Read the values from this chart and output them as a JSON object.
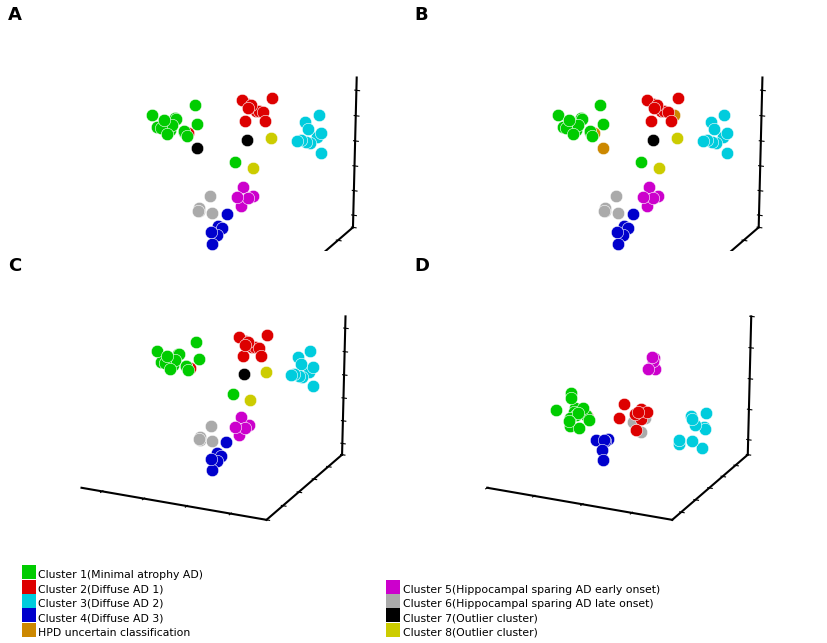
{
  "colors": {
    "cluster1": "#00cc00",
    "cluster2": "#dd0000",
    "cluster3": "#00ccdd",
    "cluster4": "#0000cc",
    "cluster5": "#cc00cc",
    "cluster6": "#aaaaaa",
    "cluster7": "#000000",
    "cluster8": "#cccc00",
    "hpd_uncertain": "#cc8800"
  },
  "legend": [
    {
      "label": "Cluster 1(Minimal atrophy AD)",
      "color": "#00cc00"
    },
    {
      "label": "Cluster 2(Diffuse AD 1)",
      "color": "#dd0000"
    },
    {
      "label": "Cluster 3(Diffuse AD 2)",
      "color": "#00ccdd"
    },
    {
      "label": "Cluster 4(Diffuse AD 3)",
      "color": "#0000cc"
    },
    {
      "label": "HPD uncertain classification",
      "color": "#cc8800"
    },
    {
      "label": "Cluster 5(Hippocampal sparing AD early onset)",
      "color": "#cc00cc"
    },
    {
      "label": "Cluster 6(Hippocampal sparing AD late onset)",
      "color": "#aaaaaa"
    },
    {
      "label": "Cluster 7(Outlier cluster)",
      "color": "#000000"
    },
    {
      "label": "Cluster 8(Outlier cluster)",
      "color": "#cccc00"
    }
  ],
  "panel_labels": [
    "A",
    "B",
    "C",
    "D"
  ],
  "background_color": "#ffffff",
  "marker_size": 80,
  "elev": 18,
  "azim": -65
}
